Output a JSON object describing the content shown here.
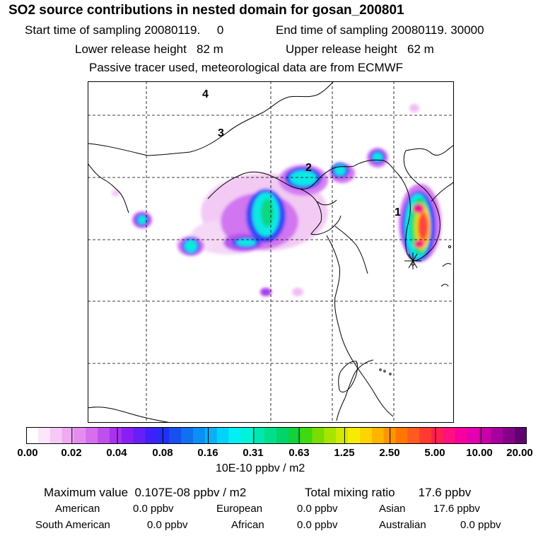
{
  "header": {
    "title": "SO2 source contributions in nested domain for gosan_200801",
    "start_label": "Start time of sampling 20080119.     0",
    "end_label": "End time of sampling 20080119. 30000",
    "lower_label": "Lower release height   82 m",
    "upper_label": "Upper release height   62 m",
    "tracer_note": "Passive tracer used, meteorological data are from ECMWF"
  },
  "map": {
    "markers": [
      {
        "label": "1"
      },
      {
        "label": "2"
      },
      {
        "label": "3"
      },
      {
        "label": "4"
      }
    ],
    "receptor_symbol": "✳"
  },
  "colorbar": {
    "ticks": [
      "0.00",
      "0.02",
      "0.04",
      "0.08",
      "0.16",
      "0.31",
      "0.63",
      "1.25",
      "2.50",
      "5.00",
      "10.00",
      "20.00"
    ],
    "unit": "10E-10 ppbv / m2",
    "colors": [
      "#ffffff",
      "#fbe6fb",
      "#f6c8f6",
      "#efaaf2",
      "#e68cf0",
      "#d66ef0",
      "#c050ee",
      "#a832ee",
      "#8820f4",
      "#6420f6",
      "#4020f8",
      "#2030f6",
      "#1850f0",
      "#1070f0",
      "#0c8ff4",
      "#08b0f8",
      "#00d4fa",
      "#00f0f4",
      "#00f2d8",
      "#00e8b0",
      "#00e08c",
      "#00d46a",
      "#10d23c",
      "#40d810",
      "#7adc00",
      "#a8e400",
      "#d2ea00",
      "#f6ec00",
      "#ffd400",
      "#ffb400",
      "#ff9400",
      "#ff7600",
      "#ff5a20",
      "#ff3a30",
      "#ff2050",
      "#ff1080",
      "#f800a0",
      "#e400b0",
      "#c800a8",
      "#a8009c",
      "#86008a",
      "#600070"
    ]
  },
  "stats": {
    "max_label": "Maximum value  0.107E-08 ppbv / m2",
    "total_label": "Total mixing ratio       17.6 ppbv",
    "american_label": "American",
    "american_value": "0.0 ppbv",
    "european_label": "European",
    "european_value": "0.0 ppbv",
    "asian_label": "Asian",
    "asian_value": "17.6 ppbv",
    "south_american_label": "South American",
    "south_american_value": "0.0 ppbv",
    "african_label": "African",
    "african_value": "0.0 ppbv",
    "australian_label": "Australian",
    "australian_value": "0.0 ppbv"
  }
}
